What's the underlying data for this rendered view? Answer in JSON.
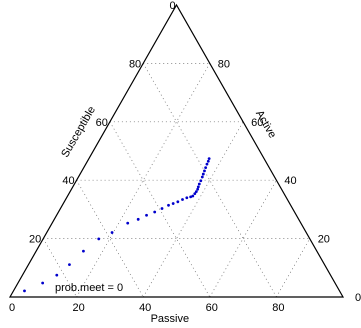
{
  "chart_data": {
    "type": "scatter",
    "chart_kind": "ternary",
    "title": "",
    "axes": {
      "bottom": {
        "label": "Passive",
        "ticks": [
          "0",
          "20",
          "40",
          "60",
          "80"
        ]
      },
      "left": {
        "label": "Susceptible",
        "ticks": [
          "20",
          "40",
          "60",
          "80"
        ]
      },
      "right": {
        "label": "Active",
        "ticks": [
          "80",
          "60",
          "40",
          "20"
        ]
      }
    },
    "corner_labels": {
      "top": "0",
      "bottom_right": "0"
    },
    "grid": true,
    "annotation": "prob.meet = 0",
    "point_color": "#0000cc",
    "series": [
      {
        "points": [
          {
            "passive": 3.3,
            "active": 2.1
          },
          {
            "passive": 7.4,
            "active": 4.8
          },
          {
            "passive": 10.3,
            "active": 7.5
          },
          {
            "passive": 12.3,
            "active": 11.1
          },
          {
            "passive": 14.2,
            "active": 15.7
          },
          {
            "passive": 16.7,
            "active": 19.9
          },
          {
            "passive": 19.6,
            "active": 22.1
          },
          {
            "passive": 22.7,
            "active": 25.3
          },
          {
            "passive": 25.2,
            "active": 26.6
          },
          {
            "passive": 27.0,
            "active": 28.0
          },
          {
            "passive": 28.9,
            "active": 29.1
          },
          {
            "passive": 30.5,
            "active": 30.3
          },
          {
            "passive": 31.9,
            "active": 31.4
          },
          {
            "passive": 33.0,
            "active": 32.0
          },
          {
            "passive": 34.1,
            "active": 32.6
          },
          {
            "passive": 35.1,
            "active": 33.4
          },
          {
            "passive": 36.1,
            "active": 34.0
          },
          {
            "passive": 37.1,
            "active": 34.3
          },
          {
            "passive": 37.6,
            "active": 34.6
          },
          {
            "passive": 37.8,
            "active": 35.4
          },
          {
            "passive": 37.9,
            "active": 36.1
          },
          {
            "passive": 37.9,
            "active": 36.9
          },
          {
            "passive": 37.7,
            "active": 37.7
          },
          {
            "passive": 37.5,
            "active": 38.7
          },
          {
            "passive": 37.4,
            "active": 39.8
          },
          {
            "passive": 37.2,
            "active": 41.1
          },
          {
            "passive": 37.0,
            "active": 42.1
          },
          {
            "passive": 36.8,
            "active": 43.2
          },
          {
            "passive": 36.6,
            "active": 44.3
          },
          {
            "passive": 36.4,
            "active": 45.5
          },
          {
            "passive": 36.3,
            "active": 46.5
          },
          {
            "passive": 36.1,
            "active": 47.4
          }
        ]
      }
    ]
  }
}
